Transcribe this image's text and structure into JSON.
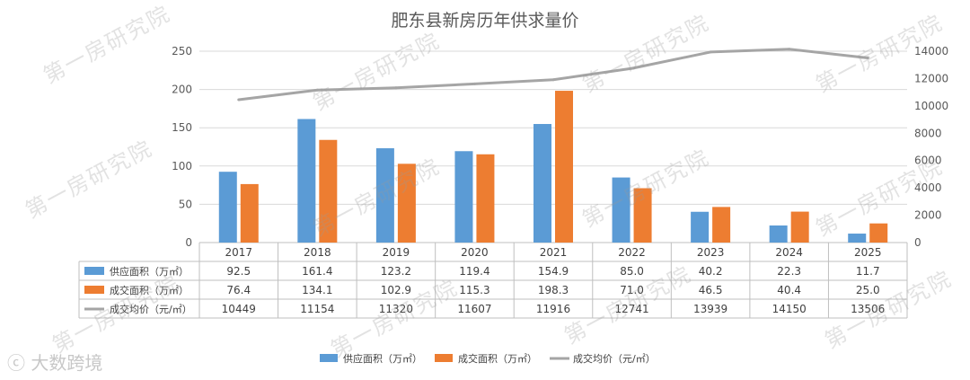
{
  "chart_data": {
    "type": "bar",
    "title": "肥东县新房历年供求量价",
    "categories": [
      "2017",
      "2018",
      "2019",
      "2020",
      "2021",
      "2022",
      "2023",
      "2024",
      "2025"
    ],
    "series": [
      {
        "name": "供应面积（万㎡）",
        "type": "bar",
        "axis": "left",
        "color": "#5b9bd5",
        "values": [
          92.5,
          161.4,
          123.2,
          119.4,
          154.9,
          85.0,
          40.2,
          22.3,
          11.7
        ],
        "labels": [
          "92.5",
          "161.4",
          "123.2",
          "119.4",
          "154.9",
          "85.0",
          "40.2",
          "22.3",
          "11.7"
        ]
      },
      {
        "name": "成交面积（万㎡）",
        "type": "bar",
        "axis": "left",
        "color": "#ed7d31",
        "values": [
          76.4,
          134.1,
          102.9,
          115.3,
          198.3,
          71.0,
          46.5,
          40.4,
          25.0
        ],
        "labels": [
          "76.4",
          "134.1",
          "102.9",
          "115.3",
          "198.3",
          "71.0",
          "46.5",
          "40.4",
          "25.0"
        ]
      },
      {
        "name": "成交均价（元/㎡）",
        "type": "line",
        "axis": "right",
        "color": "#a5a5a5",
        "values": [
          10449,
          11154,
          11320,
          11607,
          11916,
          12741,
          13939,
          14150,
          13506
        ],
        "labels": [
          "10449",
          "11154",
          "11320",
          "11607",
          "11916",
          "12741",
          "13939",
          "14150",
          "13506"
        ]
      }
    ],
    "ylim": [
      0,
      250
    ],
    "y_ticks": [
      "0",
      "50",
      "100",
      "150",
      "200",
      "250"
    ],
    "y2lim": [
      0,
      14000
    ],
    "y2_ticks": [
      "0",
      "2000",
      "4000",
      "6000",
      "8000",
      "10000",
      "12000",
      "14000"
    ],
    "grid": true,
    "legend": "bottom",
    "data_table": true
  },
  "watermark": "第一房研究院",
  "logo_text": "大数跨境"
}
